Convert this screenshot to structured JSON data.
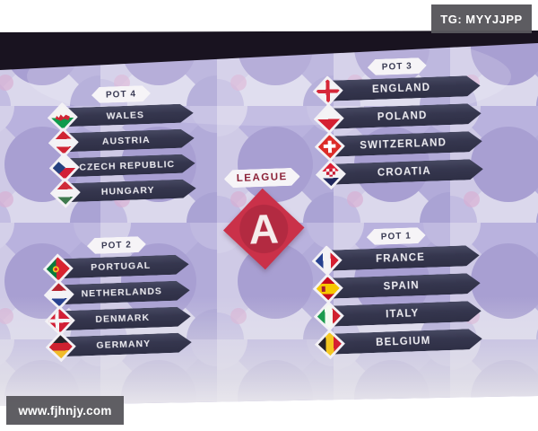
{
  "overlays": {
    "top_right_tag": "TG: MYYJJPP",
    "bottom_left_site": "www.fjhnjy.com"
  },
  "league": {
    "banner_label": "LEAGUE",
    "letter": "A"
  },
  "pots": [
    {
      "id": "pot4",
      "label": "POT 4",
      "teams": [
        {
          "name": "WALES",
          "flag": "wales"
        },
        {
          "name": "AUSTRIA",
          "flag": "austria"
        },
        {
          "name": "CZECH REPUBLIC",
          "flag": "czech"
        },
        {
          "name": "HUNGARY",
          "flag": "hungary"
        }
      ]
    },
    {
      "id": "pot3",
      "label": "POT 3",
      "teams": [
        {
          "name": "ENGLAND",
          "flag": "england"
        },
        {
          "name": "POLAND",
          "flag": "poland"
        },
        {
          "name": "SWITZERLAND",
          "flag": "switzerland"
        },
        {
          "name": "CROATIA",
          "flag": "croatia"
        }
      ]
    },
    {
      "id": "pot2",
      "label": "POT 2",
      "teams": [
        {
          "name": "PORTUGAL",
          "flag": "portugal"
        },
        {
          "name": "NETHERLANDS",
          "flag": "netherlands"
        },
        {
          "name": "DENMARK",
          "flag": "denmark"
        },
        {
          "name": "GERMANY",
          "flag": "germany"
        }
      ]
    },
    {
      "id": "pot1",
      "label": "POT 1",
      "teams": [
        {
          "name": "FRANCE",
          "flag": "france"
        },
        {
          "name": "SPAIN",
          "flag": "spain"
        },
        {
          "name": "ITALY",
          "flag": "italy"
        },
        {
          "name": "BELGIUM",
          "flag": "belgium"
        }
      ]
    }
  ],
  "colors": {
    "bar_navy": "#34354c",
    "diamond_red": "#ca3149",
    "league_text": "#8c2238",
    "background_lavender": "#c8c4e3",
    "watermark_gray": "#5a595e"
  }
}
